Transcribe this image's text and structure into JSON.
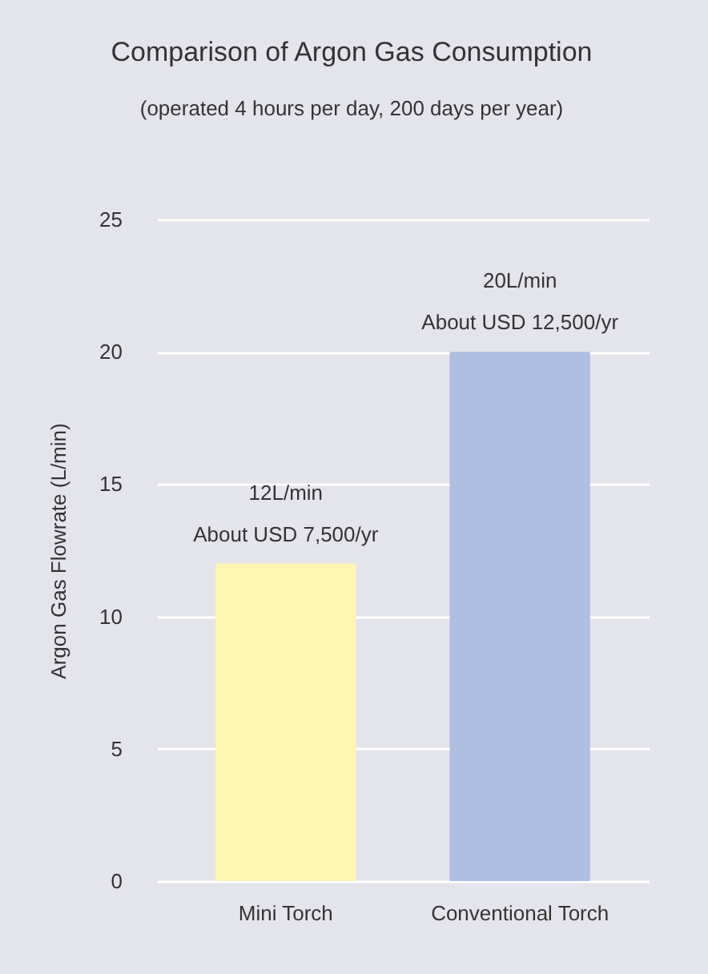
{
  "chart_data": {
    "type": "bar",
    "title": "Comparison of Argon Gas Consumption",
    "subtitle": "(operated 4 hours per day, 200 days per year)",
    "ylabel": "Argon Gas Flowrate (L/min)",
    "categories": [
      "Mini Torch",
      "Conventional Torch"
    ],
    "values": [
      12,
      20
    ],
    "colors": [
      "#fdf5b0",
      "#aebfe0"
    ],
    "value_labels": [
      "12L/min",
      "20L/min"
    ],
    "annotations": [
      {
        "text": "About USD 7,500/yr",
        "x": "Mini Torch",
        "y": 12
      },
      {
        "text": "About USD 12,500/yr",
        "x": "Conventional Torch",
        "y": 20
      }
    ],
    "ylim": [
      0,
      25
    ],
    "yticks": [
      0,
      5,
      10,
      15,
      20,
      25
    ],
    "grid": "y"
  }
}
